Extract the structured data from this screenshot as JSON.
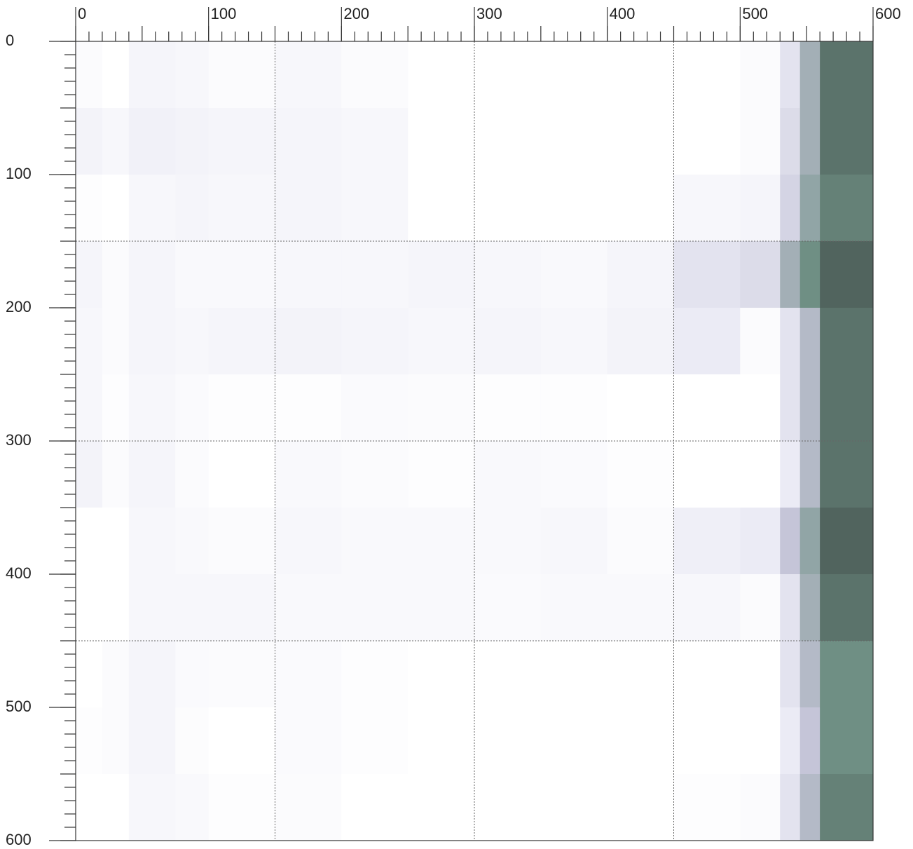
{
  "chart_data": {
    "type": "heatmap",
    "x_edges": [
      0,
      20,
      40,
      75,
      100,
      150,
      200,
      250,
      300,
      350,
      400,
      450,
      500,
      530,
      545,
      560,
      600
    ],
    "y_edges": [
      0,
      50,
      100,
      150,
      200,
      250,
      300,
      350,
      400,
      450,
      500,
      550,
      600
    ],
    "z": [
      [
        0.05,
        0,
        0.12,
        0.1,
        0.05,
        0.1,
        0.05,
        0,
        0,
        0,
        0,
        0,
        0.05,
        0.3,
        0.6,
        0.85
      ],
      [
        0.15,
        0.1,
        0.18,
        0.15,
        0.12,
        0.12,
        0.1,
        0,
        0,
        0,
        0,
        0,
        0.05,
        0.35,
        0.6,
        0.85
      ],
      [
        0.03,
        0,
        0.1,
        0.12,
        0.1,
        0.12,
        0.1,
        0,
        0,
        0,
        0,
        0.1,
        0.12,
        0.4,
        0.65,
        0.8
      ],
      [
        0.12,
        0.05,
        0.12,
        0.08,
        0.08,
        0.1,
        0.1,
        0.12,
        0.1,
        0.08,
        0.12,
        0.3,
        0.35,
        0.6,
        0.75,
        0.9
      ],
      [
        0.1,
        0.05,
        0.12,
        0.1,
        0.12,
        0.15,
        0.12,
        0.1,
        0.12,
        0.1,
        0.15,
        0.25,
        0.05,
        0.3,
        0.55,
        0.85
      ],
      [
        0.1,
        0.03,
        0.1,
        0.06,
        0.02,
        0.03,
        0.06,
        0.05,
        0.02,
        0.02,
        0,
        0,
        0,
        0.3,
        0.55,
        0.85
      ],
      [
        0.15,
        0.05,
        0.12,
        0.05,
        0,
        0.08,
        0.05,
        0.03,
        0.08,
        0.06,
        0.03,
        0,
        0,
        0.25,
        0.55,
        0.85
      ],
      [
        0,
        0,
        0.1,
        0.08,
        0.05,
        0.1,
        0.08,
        0.08,
        0.08,
        0.1,
        0.05,
        0.2,
        0.25,
        0.5,
        0.65,
        0.9
      ],
      [
        0,
        0,
        0.1,
        0.1,
        0.1,
        0.08,
        0.08,
        0.08,
        0.06,
        0.08,
        0.08,
        0.1,
        0.05,
        0.3,
        0.6,
        0.85
      ],
      [
        0,
        0.05,
        0.12,
        0.06,
        0.05,
        0.06,
        0.03,
        0,
        0,
        0,
        0,
        0,
        0,
        0.3,
        0.55,
        0.75
      ],
      [
        0.02,
        0.05,
        0.12,
        0.04,
        0,
        0.06,
        0.03,
        0,
        0,
        0,
        0,
        0,
        0,
        0.25,
        0.5,
        0.75
      ],
      [
        0,
        0,
        0.1,
        0.08,
        0.03,
        0.05,
        0,
        0,
        0,
        0,
        0,
        0.03,
        0.05,
        0.3,
        0.55,
        0.8
      ]
    ],
    "zlim": [
      0,
      1
    ],
    "colormap": [
      "#ffffff",
      "#ebebf5",
      "#c5c5d8",
      "#6f8f84",
      "#3d4845"
    ],
    "xlim": [
      0,
      600
    ],
    "ylim": [
      0,
      600
    ],
    "xticks": [
      0,
      100,
      200,
      300,
      400,
      500,
      600
    ],
    "yticks": [
      0,
      100,
      200,
      300,
      400,
      500,
      600
    ],
    "minor_tick_step": 10,
    "grid_lines": [
      150,
      300,
      450
    ]
  }
}
